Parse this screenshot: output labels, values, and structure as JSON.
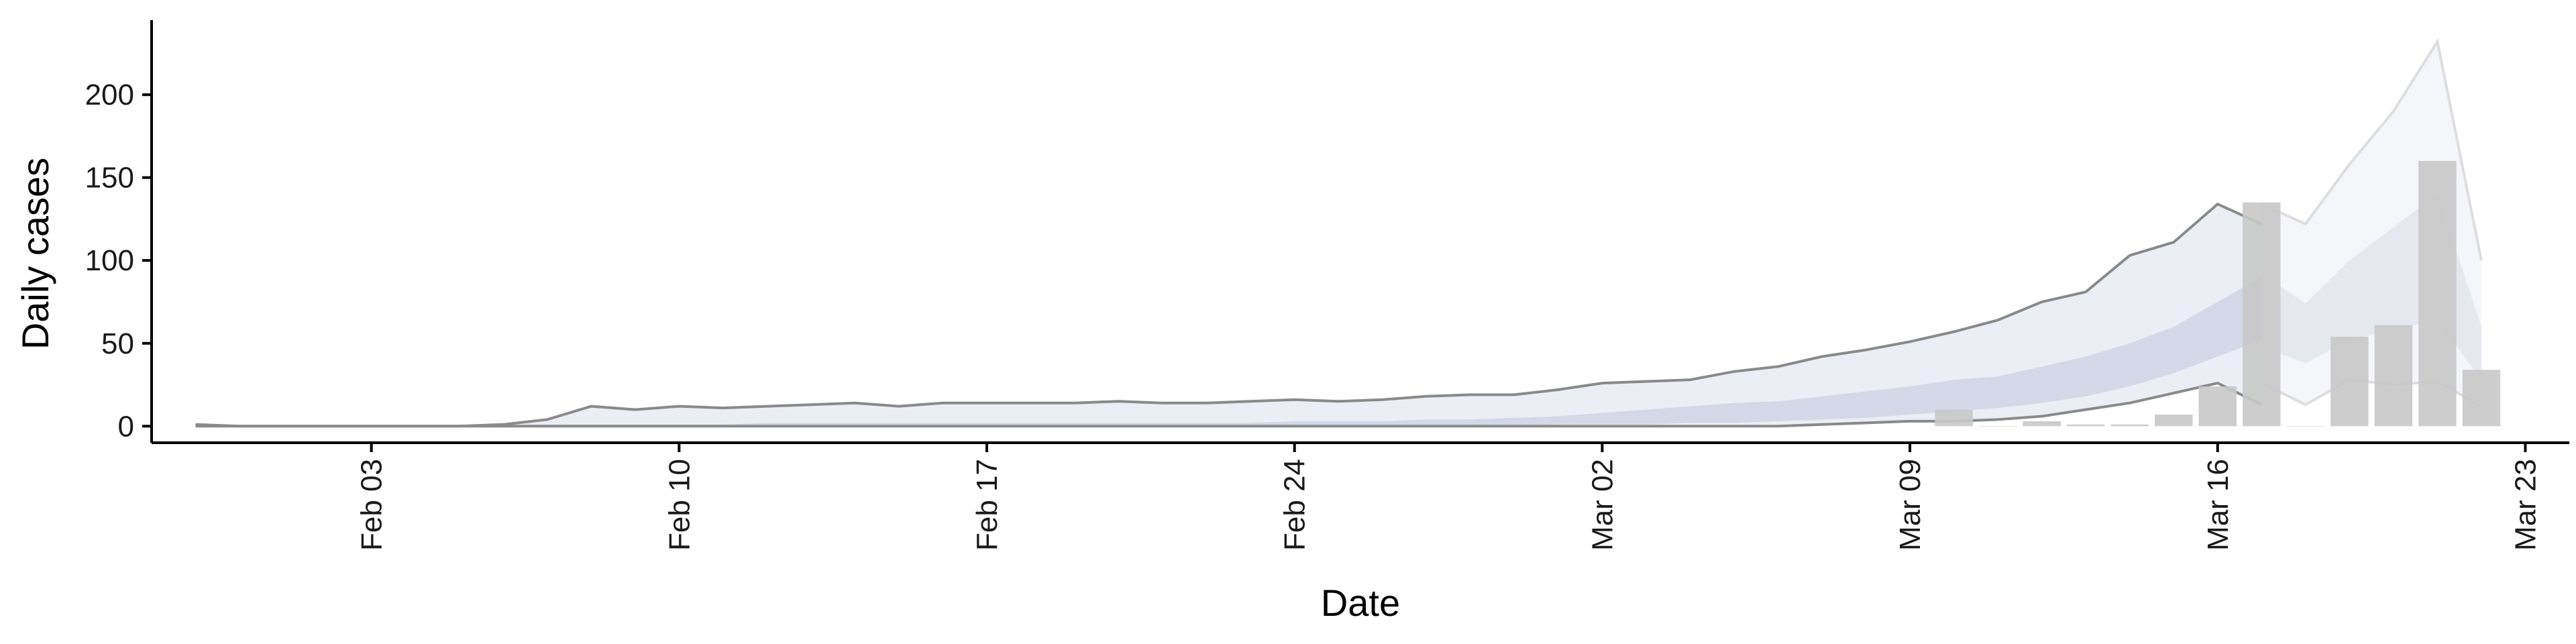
{
  "chart_data": {
    "type": "area",
    "xlabel": "Date",
    "ylabel": "Daily cases",
    "ylim": [
      -10,
      245
    ],
    "xlim": [
      "2020-01-29",
      "2020-03-24"
    ],
    "grid": false,
    "legend": "none",
    "x_ticks": [
      {
        "date": "2020-02-03",
        "label": "Feb 03"
      },
      {
        "date": "2020-02-10",
        "label": "Feb 10"
      },
      {
        "date": "2020-02-17",
        "label": "Feb 17"
      },
      {
        "date": "2020-02-24",
        "label": "Feb 24"
      },
      {
        "date": "2020-03-02",
        "label": "Mar 02"
      },
      {
        "date": "2020-03-09",
        "label": "Mar 09"
      },
      {
        "date": "2020-03-16",
        "label": "Mar 16"
      },
      {
        "date": "2020-03-23",
        "label": "Mar 23"
      }
    ],
    "y_ticks": [
      0,
      50,
      100,
      150,
      200
    ],
    "colors": {
      "outer_band": "#eceef5",
      "inner_band": "#d0d4e6",
      "forecast_outer": "#f5f6fa",
      "forecast_inner": "#e6e8f0",
      "bounds_line": "#8a8a8a",
      "forecast_line": "#dedede",
      "bars": "#c8c8c8"
    },
    "bands": {
      "dates": [
        "2020-01-30",
        "2020-01-31",
        "2020-02-01",
        "2020-02-02",
        "2020-02-03",
        "2020-02-04",
        "2020-02-05",
        "2020-02-06",
        "2020-02-07",
        "2020-02-08",
        "2020-02-09",
        "2020-02-10",
        "2020-02-11",
        "2020-02-12",
        "2020-02-13",
        "2020-02-14",
        "2020-02-15",
        "2020-02-16",
        "2020-02-17",
        "2020-02-18",
        "2020-02-19",
        "2020-02-20",
        "2020-02-21",
        "2020-02-22",
        "2020-02-23",
        "2020-02-24",
        "2020-02-25",
        "2020-02-26",
        "2020-02-27",
        "2020-02-28",
        "2020-02-29",
        "2020-03-01",
        "2020-03-02",
        "2020-03-03",
        "2020-03-04",
        "2020-03-05",
        "2020-03-06",
        "2020-03-07",
        "2020-03-08",
        "2020-03-09",
        "2020-03-10",
        "2020-03-11",
        "2020-03-12",
        "2020-03-13",
        "2020-03-14",
        "2020-03-15",
        "2020-03-16",
        "2020-03-17",
        "2020-03-18",
        "2020-03-19",
        "2020-03-20",
        "2020-03-21",
        "2020-03-22"
      ],
      "upper": [
        1,
        0,
        0,
        0,
        0,
        0,
        0,
        1,
        4,
        12,
        10,
        12,
        11,
        12,
        13,
        14,
        12,
        14,
        14,
        14,
        14,
        15,
        14,
        14,
        15,
        16,
        15,
        16,
        18,
        19,
        19,
        22,
        26,
        27,
        28,
        33,
        36,
        42,
        46,
        51,
        57,
        64,
        75,
        81,
        103,
        111,
        134,
        122,
        null,
        null,
        null,
        null,
        null
      ],
      "lower": [
        0,
        0,
        0,
        0,
        0,
        0,
        0,
        0,
        0,
        0,
        0,
        0,
        0,
        0,
        0,
        0,
        0,
        0,
        0,
        0,
        0,
        0,
        0,
        0,
        0,
        0,
        0,
        0,
        0,
        0,
        0,
        0,
        0,
        0,
        0,
        0,
        0,
        1,
        2,
        3,
        3,
        4,
        6,
        10,
        14,
        20,
        26,
        13,
        null,
        null,
        null,
        null,
        null
      ],
      "inner_upper": [
        0,
        0,
        0,
        0,
        0,
        0,
        0,
        0,
        1,
        1,
        1,
        1,
        1,
        2,
        2,
        2,
        2,
        2,
        2,
        2,
        2,
        2,
        2,
        2,
        2,
        3,
        3,
        3,
        4,
        4,
        5,
        6,
        8,
        10,
        12,
        14,
        15,
        18,
        21,
        24,
        28,
        30,
        36,
        42,
        50,
        60,
        75,
        90,
        null,
        null,
        null,
        null,
        null
      ],
      "inner_lower": [
        0,
        0,
        0,
        0,
        0,
        0,
        0,
        0,
        0,
        0,
        0,
        0,
        0,
        0,
        0,
        0,
        0,
        0,
        0,
        0,
        0,
        0,
        0,
        0,
        0,
        0,
        0,
        0,
        0,
        0,
        0,
        1,
        1,
        1,
        2,
        2,
        3,
        4,
        5,
        7,
        9,
        11,
        14,
        18,
        24,
        32,
        42,
        52,
        null,
        null,
        null,
        null,
        null
      ]
    },
    "forecast": {
      "dates": [
        "2020-03-17",
        "2020-03-18",
        "2020-03-19",
        "2020-03-20",
        "2020-03-21",
        "2020-03-22"
      ],
      "upper": [
        134,
        122,
        158,
        190,
        232,
        100
      ],
      "lower": [
        26,
        13,
        28,
        25,
        27,
        12
      ],
      "inner_upper": [
        92,
        74,
        100,
        120,
        140,
        60
      ],
      "inner_lower": [
        48,
        38,
        52,
        58,
        64,
        28
      ]
    },
    "bars": {
      "dates": [
        "2020-03-10",
        "2020-03-11",
        "2020-03-12",
        "2020-03-13",
        "2020-03-14",
        "2020-03-15",
        "2020-03-16",
        "2020-03-17",
        "2020-03-18",
        "2020-03-19",
        "2020-03-20",
        "2020-03-21",
        "2020-03-22"
      ],
      "values": [
        10,
        0,
        3,
        1,
        1,
        7,
        24,
        135,
        0,
        54,
        61,
        160,
        34
      ]
    }
  }
}
